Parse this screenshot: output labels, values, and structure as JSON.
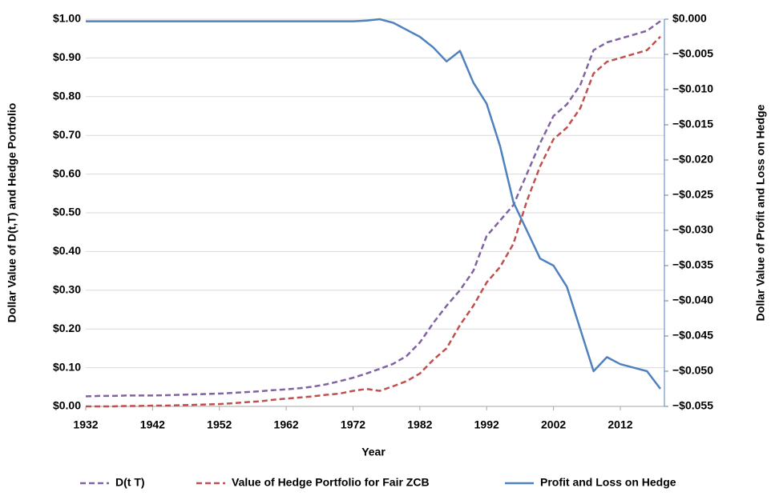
{
  "chart_data": {
    "type": "line",
    "x_label": "Year",
    "y_label": "Dollar Value of D(t,T) and Hedge Portfolio",
    "y2_label": "Dollar Value of Profit and Loss on Hedge",
    "x": [
      1932,
      1934,
      1936,
      1938,
      1940,
      1942,
      1944,
      1946,
      1948,
      1950,
      1952,
      1954,
      1956,
      1958,
      1960,
      1962,
      1964,
      1966,
      1968,
      1970,
      1972,
      1974,
      1976,
      1978,
      1980,
      1982,
      1984,
      1986,
      1988,
      1990,
      1992,
      1994,
      1996,
      1998,
      2000,
      2002,
      2004,
      2006,
      2008,
      2010,
      2012,
      2014,
      2016,
      2018
    ],
    "series": [
      {
        "name": "D(t T)",
        "color": "#8064a2",
        "dash": true,
        "values": [
          0.026,
          0.027,
          0.027,
          0.028,
          0.028,
          0.028,
          0.029,
          0.03,
          0.031,
          0.032,
          0.033,
          0.035,
          0.037,
          0.039,
          0.042,
          0.044,
          0.047,
          0.051,
          0.057,
          0.065,
          0.074,
          0.085,
          0.097,
          0.11,
          0.13,
          0.165,
          0.215,
          0.26,
          0.3,
          0.35,
          0.44,
          0.48,
          0.52,
          0.6,
          0.68,
          0.75,
          0.78,
          0.83,
          0.92,
          0.94,
          0.95,
          0.96,
          0.97,
          0.995
        ]
      },
      {
        "name": "Value of Hedge Portfolio for Fair ZCB",
        "color": "#c0504d",
        "dash": true,
        "values": [
          0,
          0,
          0,
          0.001,
          0.001,
          0.002,
          0.002,
          0.003,
          0.004,
          0.005,
          0.006,
          0.008,
          0.011,
          0.013,
          0.017,
          0.02,
          0.023,
          0.026,
          0.03,
          0.033,
          0.04,
          0.045,
          0.04,
          0.052,
          0.065,
          0.085,
          0.12,
          0.15,
          0.21,
          0.26,
          0.32,
          0.36,
          0.42,
          0.53,
          0.62,
          0.69,
          0.72,
          0.77,
          0.86,
          0.89,
          0.9,
          0.91,
          0.92,
          0.955
        ]
      },
      {
        "name": "Profit and Loss on Hedge",
        "color": "#4f81bd",
        "dash": false,
        "axis": "y2",
        "values": [
          -0.0003,
          -0.0003,
          -0.0003,
          -0.0003,
          -0.0003,
          -0.0003,
          -0.0003,
          -0.0003,
          -0.0003,
          -0.0003,
          -0.0003,
          -0.0003,
          -0.0003,
          -0.0003,
          -0.0003,
          -0.0003,
          -0.0003,
          -0.0003,
          -0.0003,
          -0.0003,
          -0.0003,
          -0.0002,
          0,
          -0.0005,
          -0.0015,
          -0.0025,
          -0.004,
          -0.006,
          -0.0045,
          -0.009,
          -0.012,
          -0.018,
          -0.026,
          -0.03,
          -0.034,
          -0.035,
          -0.038,
          -0.044,
          -0.05,
          -0.048,
          -0.049,
          -0.0495,
          -0.05,
          -0.0525
        ]
      }
    ],
    "xlim": [
      1932,
      2018.6
    ],
    "xticks": [
      1932,
      1942,
      1952,
      1962,
      1972,
      1982,
      1992,
      2002,
      2012
    ],
    "ylim": [
      0,
      1
    ],
    "yticks": [
      {
        "value": 0,
        "label": "$0.00"
      },
      {
        "value": 0.1,
        "label": "$0.10"
      },
      {
        "value": 0.2,
        "label": "$0.20"
      },
      {
        "value": 0.3,
        "label": "$0.30"
      },
      {
        "value": 0.4,
        "label": "$0.40"
      },
      {
        "value": 0.5,
        "label": "$0.50"
      },
      {
        "value": 0.6,
        "label": "$0.60"
      },
      {
        "value": 0.7,
        "label": "$0.70"
      },
      {
        "value": 0.8,
        "label": "$0.80"
      },
      {
        "value": 0.9,
        "label": "$0.90"
      },
      {
        "value": 1,
        "label": "$1.00"
      }
    ],
    "y2lim": [
      -0.055,
      0
    ],
    "y2ticks": [
      {
        "value": 0,
        "label": "$0.000"
      },
      {
        "value": -0.005,
        "label": "−$0.005"
      },
      {
        "value": -0.01,
        "label": "−$0.010"
      },
      {
        "value": -0.015,
        "label": "−$0.015"
      },
      {
        "value": -0.02,
        "label": "−$0.020"
      },
      {
        "value": -0.025,
        "label": "−$0.025"
      },
      {
        "value": -0.03,
        "label": "−$0.030"
      },
      {
        "value": -0.035,
        "label": "−$0.035"
      },
      {
        "value": -0.04,
        "label": "−$0.040"
      },
      {
        "value": -0.045,
        "label": "−$0.045"
      },
      {
        "value": -0.05,
        "label": "−$0.050"
      },
      {
        "value": -0.055,
        "label": "−$0.055"
      }
    ],
    "grid": true,
    "legend": "bottom"
  }
}
